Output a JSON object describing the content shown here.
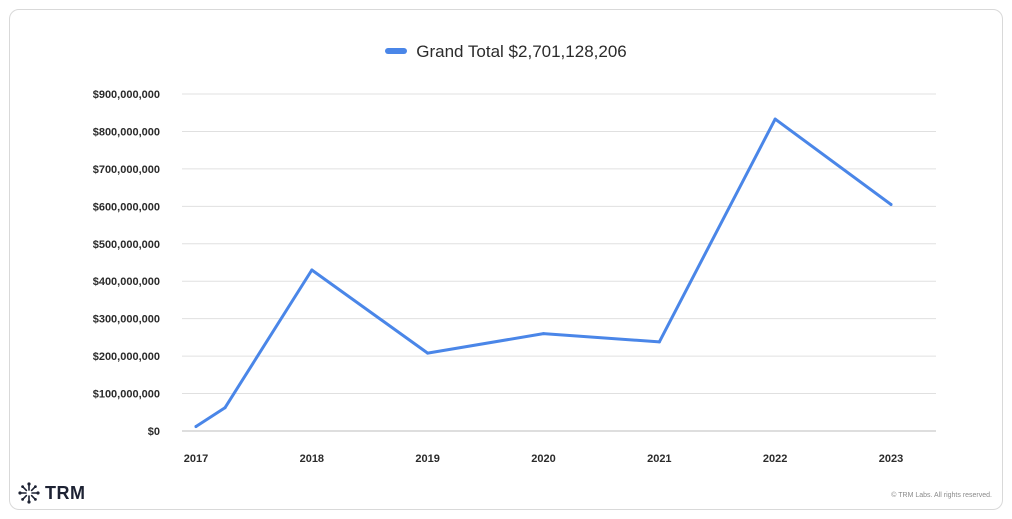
{
  "chart_data": {
    "type": "line",
    "x": [
      "2017",
      "2017",
      "2018",
      "2019",
      "2020",
      "2021",
      "2022",
      "2023"
    ],
    "x_ticks": [
      "2017",
      "2018",
      "2019",
      "2020",
      "2021",
      "2022",
      "2023"
    ],
    "y_ticks": [
      "$0",
      "$100,000,000",
      "$200,000,000",
      "$300,000,000",
      "$400,000,000",
      "$500,000,000",
      "$600,000,000",
      "$700,000,000",
      "$800,000,000",
      "$900,000,000"
    ],
    "ylim": [
      0,
      900000000
    ],
    "grid": true,
    "legend_position": "top-center",
    "series": [
      {
        "name": "Grand Total $2,701,128,206",
        "color": "#4a86e8",
        "points": [
          {
            "x": 2017.0,
            "y": 12000000
          },
          {
            "x": 2017.25,
            "y": 62000000
          },
          {
            "x": 2018.0,
            "y": 430000000
          },
          {
            "x": 2019.0,
            "y": 208000000
          },
          {
            "x": 2020.0,
            "y": 260000000
          },
          {
            "x": 2021.0,
            "y": 238000000
          },
          {
            "x": 2022.0,
            "y": 833000000
          },
          {
            "x": 2023.0,
            "y": 605000000
          }
        ]
      }
    ]
  },
  "branding": {
    "logo_text": "TRM",
    "logo_icon": "asterisk-node-icon",
    "copyright": "© TRM Labs. All rights reserved."
  }
}
